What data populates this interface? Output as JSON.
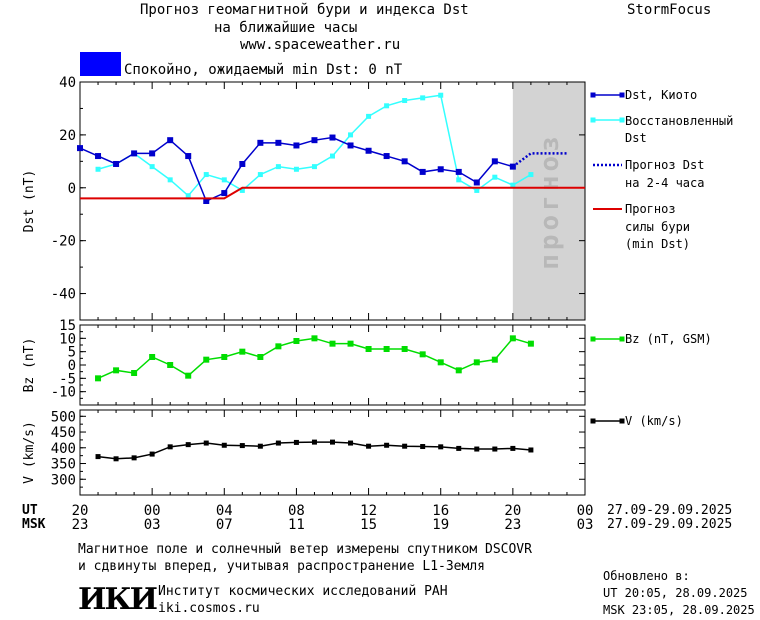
{
  "header": {
    "title_line1": "Прогноз геомагнитной бури и индекса Dst",
    "title_line2": "на ближайшие часы",
    "site": "www.spaceweather.ru",
    "brand": "StormFocus"
  },
  "status": {
    "text": "Спокойно, ожидаемый min Dst: 0 nT",
    "color": "#0000ff"
  },
  "forecast_band_label": "прогноз",
  "legend": {
    "dst_kyoto": "Dst, Киото",
    "dst_restored_1": "Восстановленный",
    "dst_restored_2": "Dst",
    "dst_forecast_1": "Прогноз Dst",
    "dst_forecast_2": "на 2-4 часа",
    "storm_forecast_1": "Прогноз",
    "storm_forecast_2": "силы бури",
    "storm_forecast_3": "(min Dst)",
    "bz": "Bz (nT, GSM)",
    "v": "V (km/s)"
  },
  "time_axis": {
    "ut_label": "UT",
    "msk_label": "MSK",
    "ut_ticks": [
      "20",
      "00",
      "04",
      "08",
      "12",
      "16",
      "20",
      "00"
    ],
    "msk_ticks": [
      "23",
      "03",
      "07",
      "11",
      "15",
      "19",
      "23",
      "03"
    ],
    "date_range": "27.09-29.09.2025"
  },
  "footer": {
    "note_line1": "Магнитное поле и солнечный ветер измерены спутником DSCOVR",
    "note_line2": "и сдвинуты вперед, учитывая распространение L1-Земля",
    "logo": "ИКИ",
    "institute": "Институт космических исследований РАН",
    "institute_site": "iki.cosmos.ru",
    "updated_label": "Обновлено в:",
    "updated_ut": "UT  20:05, 28.09.2025",
    "updated_msk": "MSK 23:05, 28.09.2025"
  },
  "colors": {
    "dst_kyoto": "#0000cc",
    "dst_restored": "#33ffff",
    "dst_forecast": "#0000cc",
    "storm_forecast": "#dd0000",
    "bz": "#00dd00",
    "v": "#000000",
    "forecast_band": "#d3d3d3"
  },
  "chart_data": [
    {
      "type": "line",
      "ylabel": "Dst (nT)",
      "xlabel": "UT",
      "x_unit": "hours since 20 UT 27.09",
      "xlim": [
        0,
        28
      ],
      "ylim": [
        -50,
        40
      ],
      "yticks": [
        40,
        20,
        0,
        -20,
        -40
      ],
      "forecast_region_x": [
        24,
        28
      ],
      "legend_position": "right",
      "series": [
        {
          "name": "Dst, Киото",
          "x": [
            0,
            1,
            2,
            3,
            4,
            5,
            6,
            7,
            8,
            9,
            10,
            11,
            12,
            13,
            14,
            15,
            16,
            17,
            18,
            19,
            20,
            21,
            22,
            23,
            24
          ],
          "values": [
            15,
            12,
            9,
            13,
            13,
            18,
            12,
            -5,
            -2,
            9,
            17,
            17,
            16,
            18,
            19,
            16,
            14,
            12,
            10,
            6,
            7,
            6,
            2,
            10,
            8
          ]
        },
        {
          "name": "Восстановленный Dst",
          "x": [
            1,
            2,
            3,
            4,
            5,
            6,
            7,
            8,
            9,
            10,
            11,
            12,
            13,
            14,
            15,
            16,
            17,
            18,
            19,
            20,
            21,
            22,
            23,
            24,
            25
          ],
          "values": [
            7,
            9,
            13,
            8,
            3,
            -3,
            5,
            3,
            -1,
            5,
            8,
            7,
            8,
            12,
            20,
            27,
            31,
            33,
            34,
            35,
            3,
            -1,
            4,
            1,
            5
          ]
        },
        {
          "name": "Прогноз Dst на 2-4 часа",
          "x": [
            24,
            25,
            26,
            27
          ],
          "values": [
            8,
            13,
            13,
            13
          ]
        },
        {
          "name": "Прогноз силы бури (min Dst)",
          "x": [
            0,
            7,
            8,
            9,
            28
          ],
          "values": [
            -4,
            -4,
            -4,
            0,
            0
          ]
        }
      ]
    },
    {
      "type": "line",
      "ylabel": "Bz (nT)",
      "xlim": [
        0,
        28
      ],
      "ylim": [
        -15,
        15
      ],
      "yticks": [
        15,
        10,
        5,
        0,
        -5,
        -10
      ],
      "series": [
        {
          "name": "Bz (nT, GSM)",
          "x": [
            1,
            2,
            3,
            4,
            5,
            6,
            7,
            8,
            9,
            10,
            11,
            12,
            13,
            14,
            15,
            16,
            17,
            18,
            19,
            20,
            21,
            22,
            23,
            24,
            25
          ],
          "values": [
            -5,
            -2,
            -3,
            3,
            0,
            -4,
            2,
            3,
            5,
            3,
            7,
            9,
            10,
            8,
            8,
            6,
            6,
            6,
            4,
            1,
            -2,
            1,
            2,
            10,
            8
          ]
        }
      ]
    },
    {
      "type": "line",
      "ylabel": "V (km/s)",
      "xlim": [
        0,
        28
      ],
      "ylim": [
        250,
        520
      ],
      "yticks": [
        500,
        450,
        400,
        350,
        300
      ],
      "series": [
        {
          "name": "V (km/s)",
          "x": [
            1,
            2,
            3,
            4,
            5,
            6,
            7,
            8,
            9,
            10,
            11,
            12,
            13,
            14,
            15,
            16,
            17,
            18,
            19,
            20,
            21,
            22,
            23,
            24,
            25
          ],
          "values": [
            372,
            365,
            368,
            380,
            403,
            410,
            415,
            408,
            407,
            405,
            415,
            417,
            418,
            418,
            415,
            405,
            408,
            405,
            404,
            403,
            398,
            396,
            396,
            398,
            393
          ]
        }
      ]
    }
  ]
}
